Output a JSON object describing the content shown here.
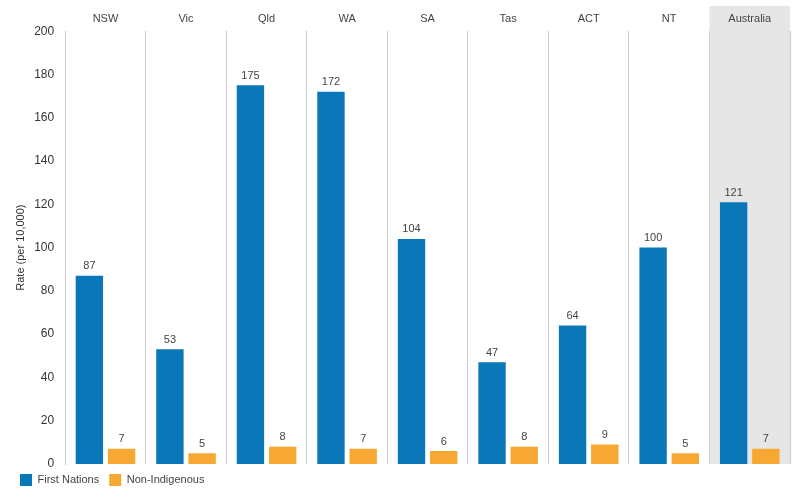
{
  "chart_data": {
    "type": "bar",
    "categories": [
      "NSW",
      "Vic",
      "Qld",
      "WA",
      "SA",
      "Tas",
      "ACT",
      "NT",
      "Australia"
    ],
    "series": [
      {
        "name": "First Nations",
        "color": "#0a77b8",
        "values": [
          87,
          53,
          175,
          172,
          104,
          47,
          64,
          100,
          121
        ]
      },
      {
        "name": "Non-Indigenous",
        "color": "#f7a833",
        "values": [
          7,
          5,
          8,
          7,
          6,
          8,
          9,
          5,
          7
        ]
      }
    ],
    "y_label": "Rate (per 10,000)",
    "ylim": [
      0,
      200
    ],
    "yticks": [
      0,
      20,
      40,
      60,
      80,
      100,
      120,
      140,
      160,
      180,
      200
    ],
    "grid": true,
    "legend": "bottom-left",
    "data_labels": true
  }
}
